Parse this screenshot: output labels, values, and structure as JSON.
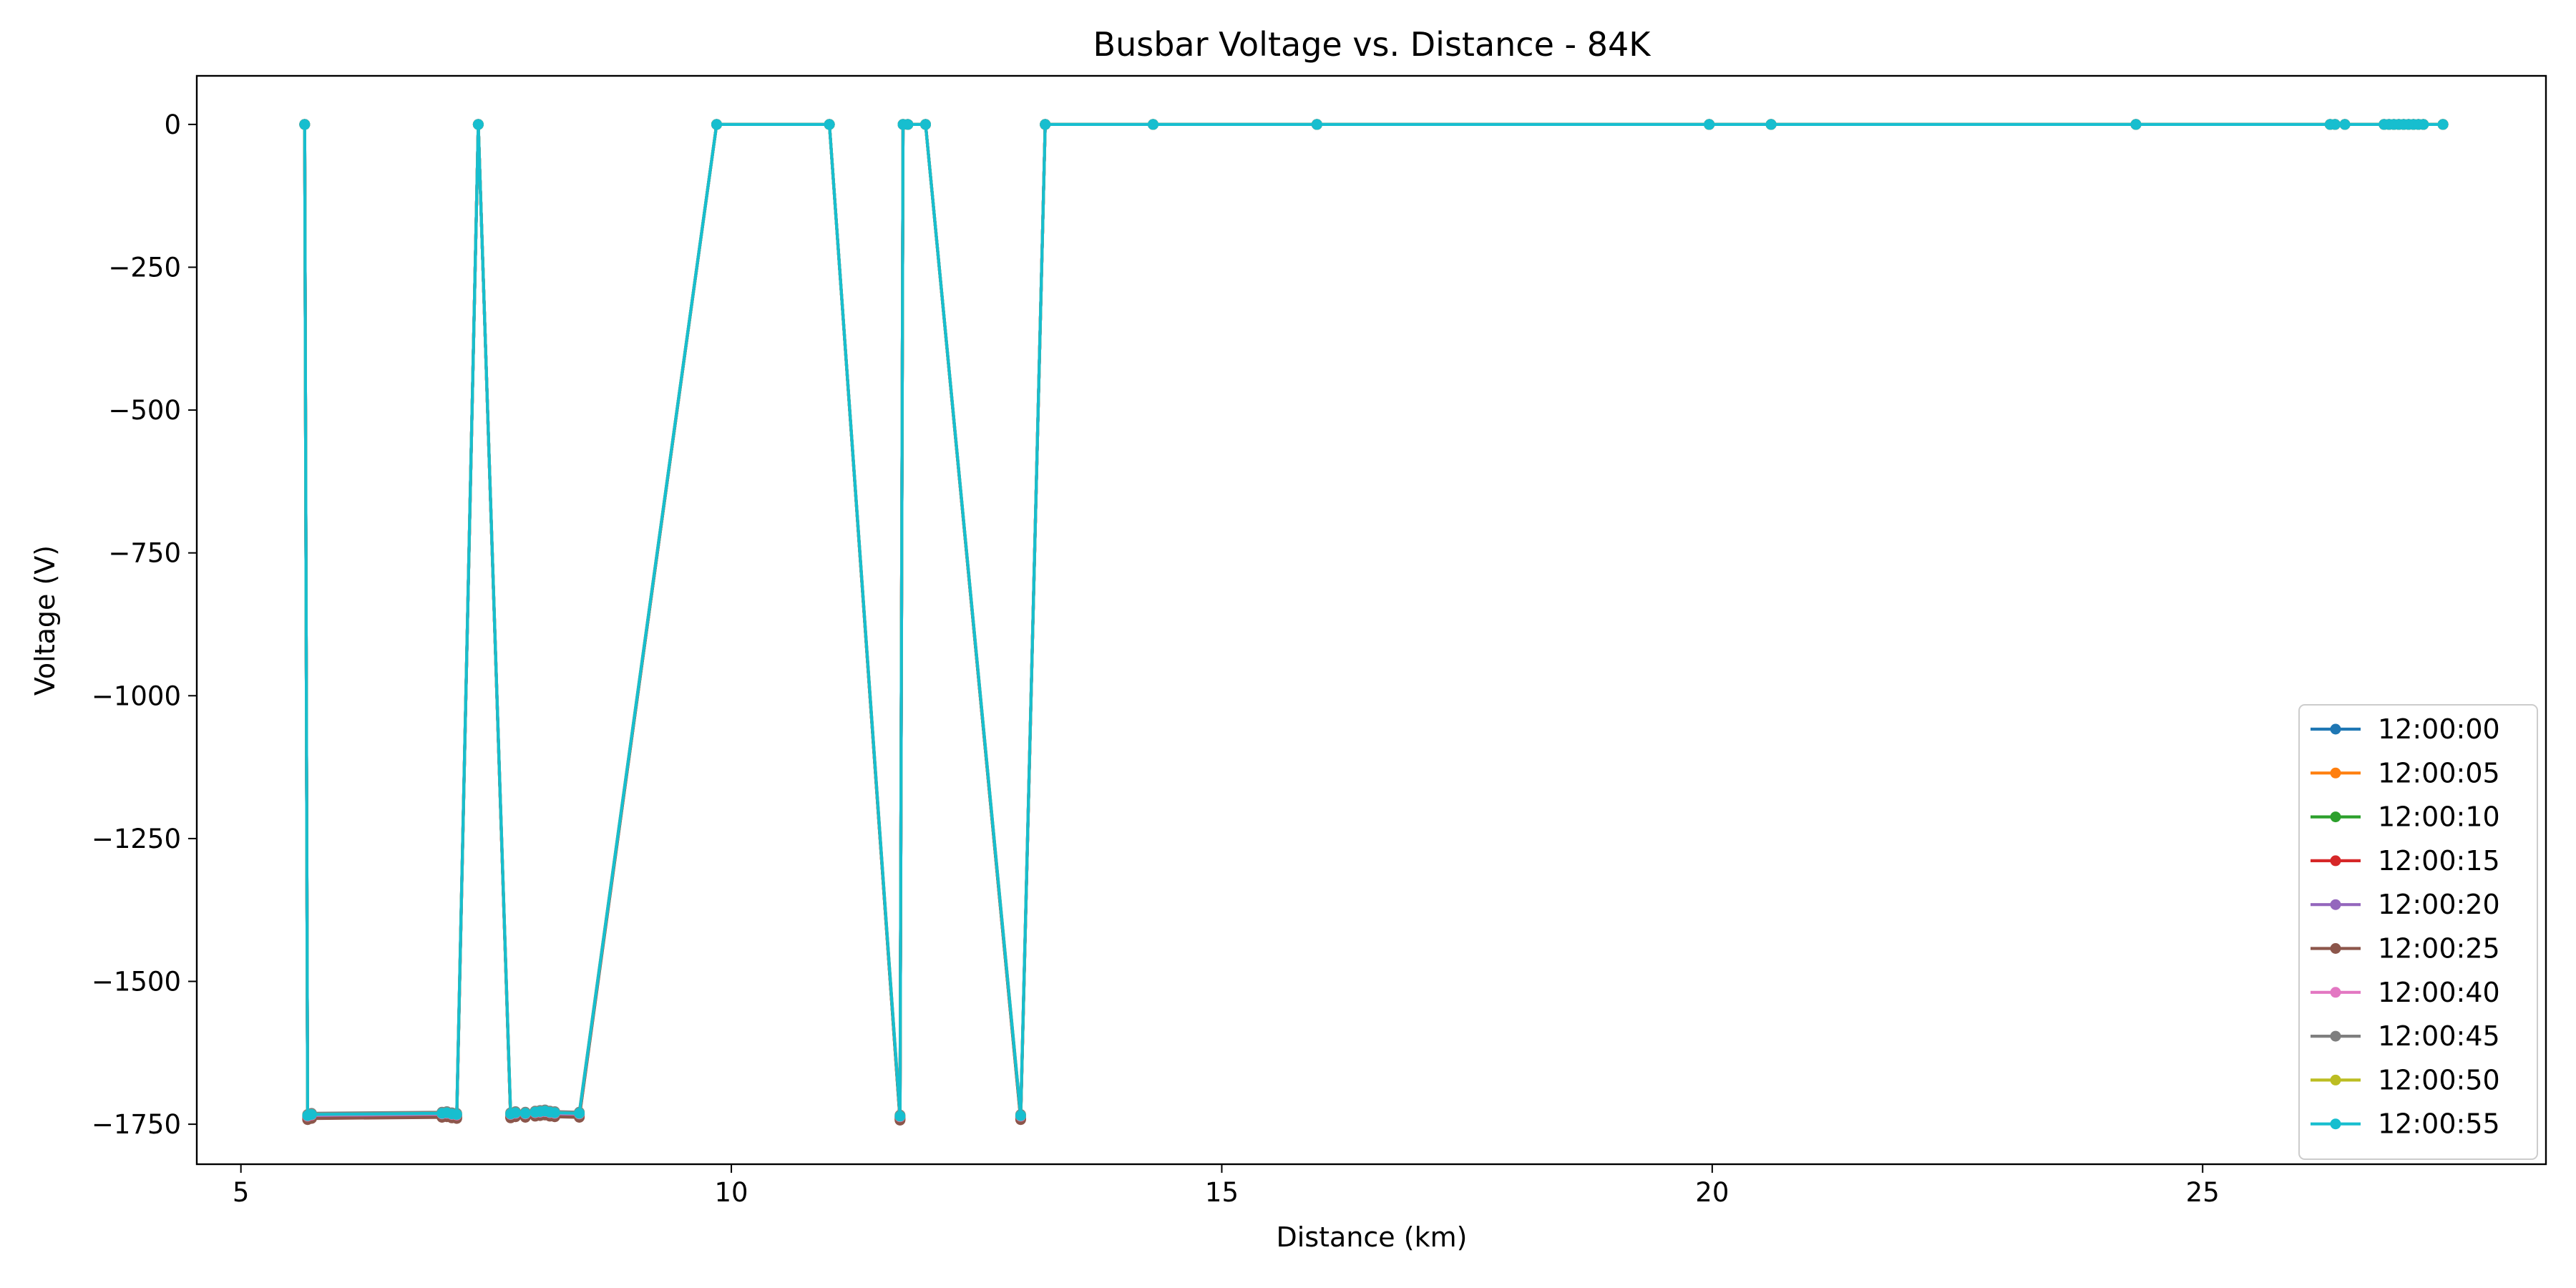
{
  "chart_data": {
    "type": "line",
    "title": "Busbar Voltage vs. Distance - 84K",
    "xlabel": "Distance (km)",
    "ylabel": "Voltage (V)",
    "xlim": [
      4.55,
      28.5
    ],
    "ylim": [
      -1820,
      85
    ],
    "xticks": [
      5,
      10,
      15,
      20,
      25
    ],
    "xtick_labels": [
      "5",
      "10",
      "15",
      "20",
      "25"
    ],
    "yticks": [
      0,
      -250,
      -500,
      -750,
      -1000,
      -1250,
      -1500,
      -1750
    ],
    "ytick_labels": [
      "0",
      "−250",
      "−500",
      "−750",
      "−1000",
      "−1250",
      "−1500",
      "−1750"
    ],
    "grid": false,
    "legend_position": "lower-right",
    "base_x": [
      5.65,
      5.68,
      5.72,
      7.05,
      7.1,
      7.15,
      7.2,
      7.42,
      7.75,
      7.8,
      7.9,
      8.0,
      8.05,
      8.1,
      8.15,
      8.2,
      8.45,
      9.85,
      11.0,
      11.72,
      11.75,
      11.8,
      11.98,
      12.95,
      13.2,
      14.3,
      15.97,
      19.97,
      20.6,
      24.32,
      26.3,
      26.35,
      26.45,
      26.85,
      26.9,
      26.95,
      27.0,
      27.05,
      27.1,
      27.15,
      27.2,
      27.25,
      27.45
    ],
    "base_y": [
      0,
      -1735,
      -1733,
      -1731,
      -1730,
      -1732,
      -1733,
      0,
      -1732,
      -1730,
      -1731,
      -1729,
      -1728,
      -1727,
      -1729,
      -1730,
      -1731,
      0,
      0,
      -1736,
      0,
      0,
      0,
      -1735,
      0,
      0,
      0,
      0,
      0,
      0,
      0,
      0,
      0,
      0,
      0,
      0,
      0,
      0,
      0,
      0,
      0,
      0,
      0
    ],
    "series": [
      {
        "name": "12:00:00",
        "color": "#1f77b4",
        "offset": -4
      },
      {
        "name": "12:00:05",
        "color": "#ff7f0e",
        "offset": -6
      },
      {
        "name": "12:00:10",
        "color": "#2ca02c",
        "offset": -5
      },
      {
        "name": "12:00:15",
        "color": "#d62728",
        "offset": -3
      },
      {
        "name": "12:00:20",
        "color": "#9467bd",
        "offset": -2
      },
      {
        "name": "12:00:25",
        "color": "#8c564b",
        "offset": -7
      },
      {
        "name": "12:00:40",
        "color": "#e377c2",
        "offset": -1
      },
      {
        "name": "12:00:45",
        "color": "#7f7f7f",
        "offset": 2
      },
      {
        "name": "12:00:50",
        "color": "#bcbd22",
        "offset": 0
      },
      {
        "name": "12:00:55",
        "color": "#17becf",
        "offset": 0
      }
    ]
  }
}
